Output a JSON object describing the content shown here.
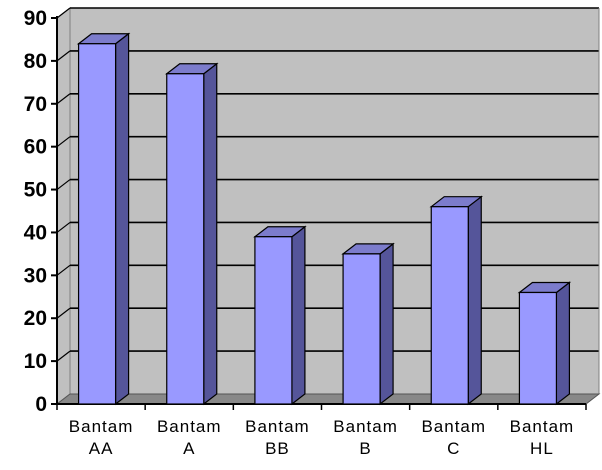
{
  "chart_data": {
    "type": "bar",
    "categories": [
      [
        "Bantam",
        "AA"
      ],
      [
        "Bantam",
        "A"
      ],
      [
        "Bantam",
        "BB"
      ],
      [
        "Bantam",
        "B"
      ],
      [
        "Bantam",
        "C"
      ],
      [
        "Bantam",
        "HL"
      ]
    ],
    "values": [
      84,
      77,
      39,
      35,
      46,
      26
    ],
    "title": "",
    "xlabel": "",
    "ylabel": "",
    "ylim": [
      0,
      90
    ],
    "yticks": [
      0,
      10,
      20,
      30,
      40,
      50,
      60,
      70,
      80,
      90
    ],
    "grid": true,
    "legend": "none",
    "style": "3d",
    "colors": {
      "bar_front": "#9999ff",
      "bar_side": "#55559a",
      "bar_top": "#7c7ccc",
      "wall": "#c0c0c0",
      "floor": "#888888",
      "gridline": "#000000"
    }
  }
}
